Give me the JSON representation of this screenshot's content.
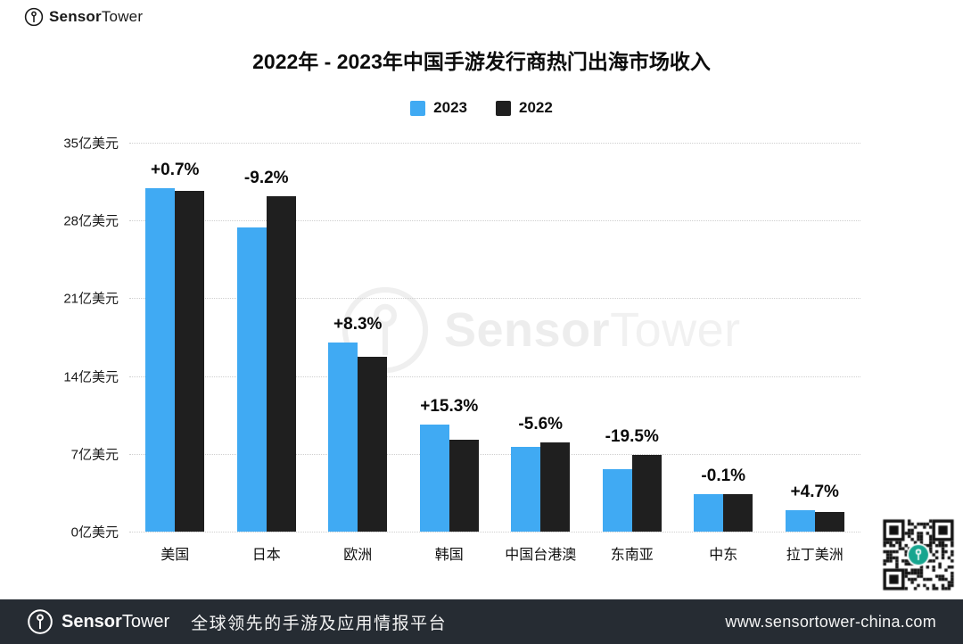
{
  "brand": {
    "bold": "Sensor",
    "light": "Tower"
  },
  "title": "2022年 - 2023年中国手游发行商热门出海市场收入",
  "legend": [
    {
      "label": "2023",
      "color": "#40aaf3"
    },
    {
      "label": "2022",
      "color": "#1f1f1f"
    }
  ],
  "chart_data": {
    "type": "bar",
    "title": "2022年 - 2023年中国手游发行商热门出海市场收入",
    "unit": "亿美元",
    "categories": [
      "美国",
      "日本",
      "欧洲",
      "韩国",
      "中国台港澳",
      "东南亚",
      "中东",
      "拉丁美洲"
    ],
    "series": [
      {
        "name": "2023",
        "color": "#40aaf3",
        "values": [
          30.9,
          27.4,
          17.0,
          9.6,
          7.6,
          5.6,
          3.4,
          1.9
        ]
      },
      {
        "name": "2022",
        "color": "#1f1f1f",
        "values": [
          30.7,
          30.2,
          15.7,
          8.3,
          8.0,
          6.9,
          3.4,
          1.8
        ]
      }
    ],
    "change_labels": [
      "+0.7%",
      "-9.2%",
      "+8.3%",
      "+15.3%",
      "-5.6%",
      "-19.5%",
      "-0.1%",
      "+4.7%"
    ],
    "y_ticks": [
      {
        "value": 35,
        "label": "35亿美元"
      },
      {
        "value": 28,
        "label": "28亿美元"
      },
      {
        "value": 21,
        "label": "21亿美元"
      },
      {
        "value": 14,
        "label": "14亿美元"
      },
      {
        "value": 7,
        "label": "7亿美元"
      },
      {
        "value": 0,
        "label": "0亿美元"
      }
    ],
    "ylim": [
      0,
      35
    ],
    "legend_position": "top-center",
    "grid": "horizontal-dotted"
  },
  "watermark": {
    "bold": "Sensor",
    "light": "Tower"
  },
  "qr_center_color": "#16a58f",
  "footer": {
    "brand_bold": "Sensor",
    "brand_light": "Tower",
    "tagline": "全球领先的手游及应用情报平台",
    "url": "www.sensortower-china.com"
  }
}
